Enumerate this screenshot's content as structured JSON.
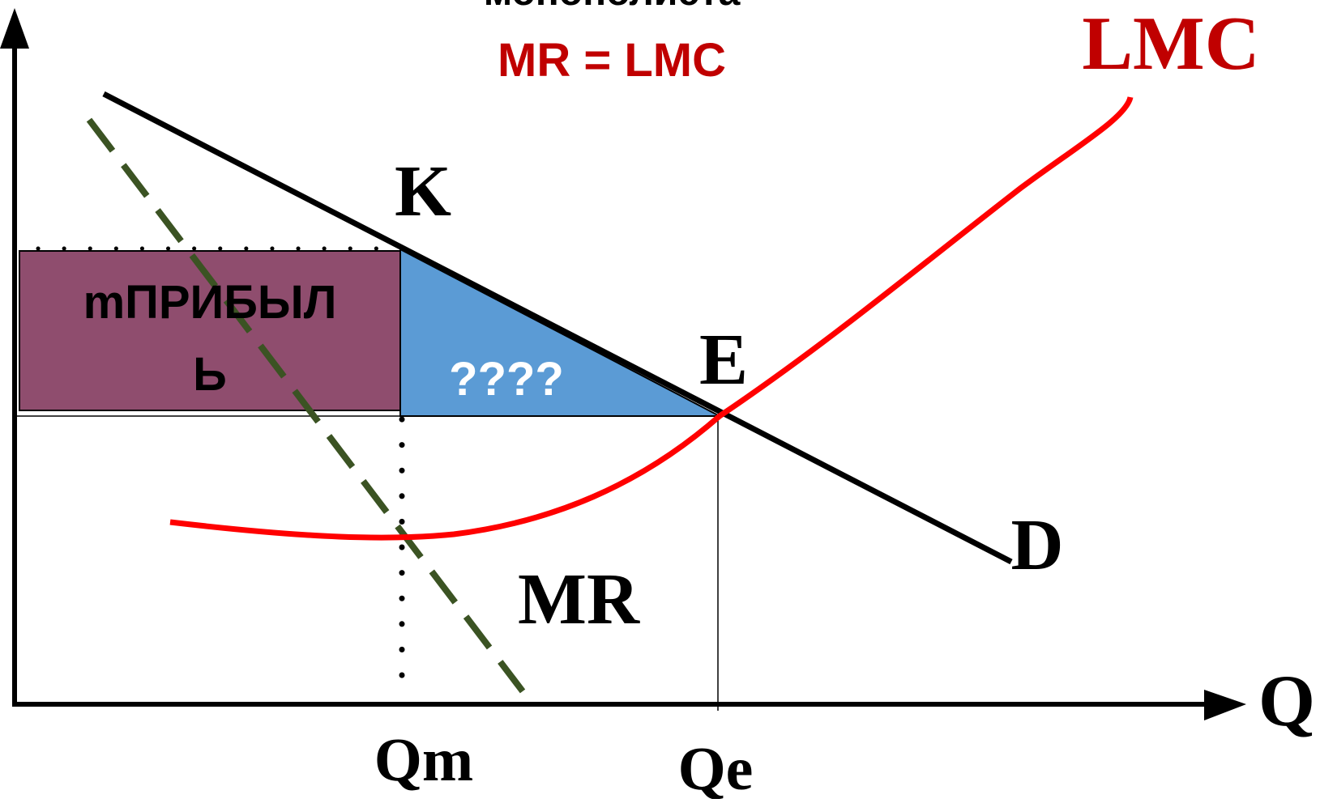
{
  "title_partial": "монополиста",
  "subtitle": "MR = LMC",
  "labels": {
    "lmc": "LMC",
    "k": "K",
    "e": "E",
    "d": "D",
    "mr": "MR",
    "qm": "Qm",
    "qe": "Qe",
    "q_axis": "Q"
  },
  "profit_box": {
    "line1": "mПРИБЫЛ",
    "line2": "Ь"
  },
  "triangle_label": "????",
  "colors": {
    "lmc": "#ff0000",
    "subtitle": "#c00000",
    "demand": "#000000",
    "mr": "#3b5323",
    "profit_fill": "#8f4d6e",
    "triangle_fill": "#5b9bd5",
    "triangle_text": "#ffffff",
    "text": "#000000"
  }
}
